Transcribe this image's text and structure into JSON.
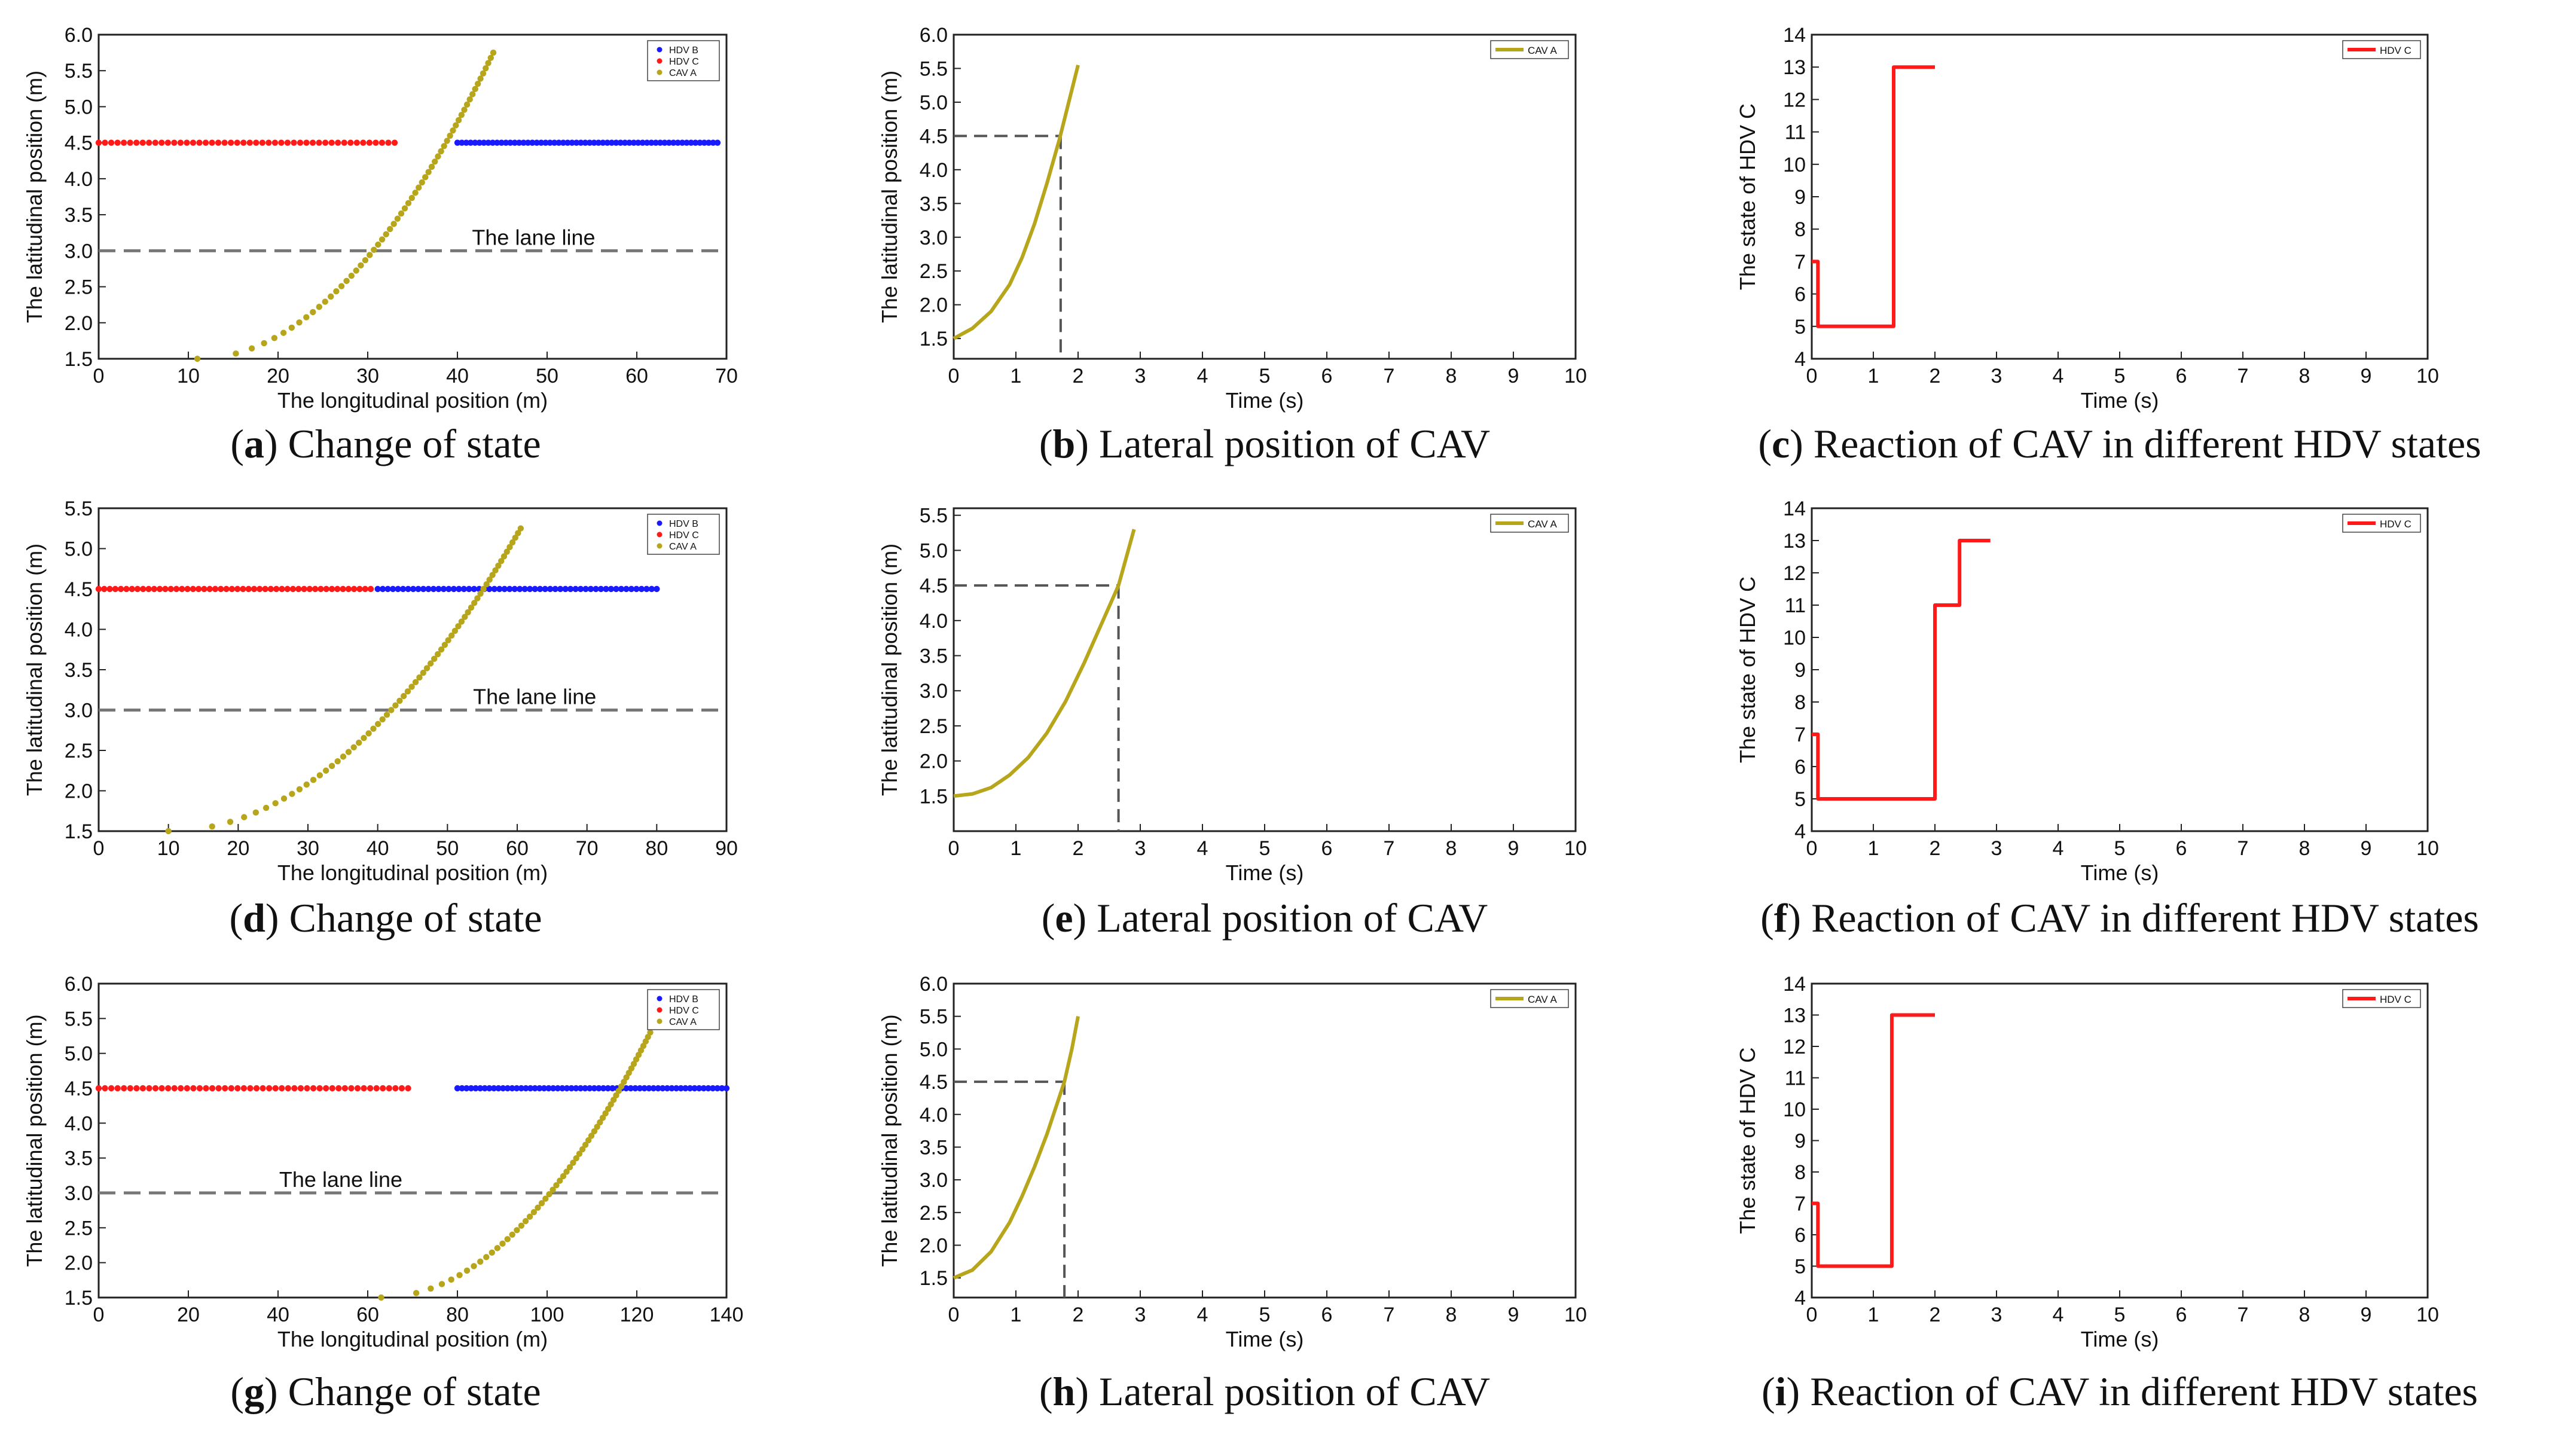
{
  "figure": {
    "description_free": true
  },
  "chart_data": [
    {
      "id": "a",
      "type": "scatter",
      "caption_letter": "a",
      "caption_text": " Change of state",
      "xlabel": "The longitudinal position (m)",
      "ylabel": "The latitudinal position (m)",
      "xlim": [
        0,
        70
      ],
      "ylim": [
        1.5,
        6.0
      ],
      "xticks": [
        0,
        10,
        20,
        30,
        40,
        50,
        60,
        70
      ],
      "yticks": [
        1.5,
        2.0,
        2.5,
        3.0,
        3.5,
        4.0,
        4.5,
        5.0,
        5.5,
        6.0
      ],
      "lane_line": {
        "y": 3.0,
        "label": "The lane line",
        "label_x": 48.5
      },
      "legend": [
        "HDV B",
        "HDV C",
        "CAV A"
      ],
      "series": [
        {
          "name": "HDV B",
          "color": "#1a1aff",
          "y": 4.5,
          "x_start": 40,
          "x_end": 69,
          "count": 60
        },
        {
          "name": "HDV C",
          "color": "#ff1a1a",
          "y": 4.5,
          "x_start": 0,
          "x_end": 33,
          "count": 48
        },
        {
          "name": "CAV A",
          "color": "#b7a51b",
          "x_start": 11,
          "x_end": 44,
          "y_start": 1.5,
          "y_end": 5.75,
          "count": 60
        }
      ]
    },
    {
      "id": "b",
      "type": "line",
      "caption_letter": "b",
      "caption_text": " Lateral position of CAV",
      "xlabel": "Time (s)",
      "ylabel": "The latitudinal position (m)",
      "xlim": [
        0,
        10
      ],
      "ylim": [
        1.2,
        6.0
      ],
      "xticks": [
        0,
        1,
        2,
        3,
        4,
        5,
        6,
        7,
        8,
        9,
        10
      ],
      "yticks": [
        1.5,
        2.0,
        2.5,
        3.0,
        3.5,
        4.0,
        4.5,
        5.0,
        5.5,
        6.0
      ],
      "legend": [
        "CAV A"
      ],
      "crossing": {
        "x": 1.72,
        "y": 4.5
      },
      "series": [
        {
          "name": "CAV A",
          "color": "#b7a51b",
          "x": [
            0,
            0.3,
            0.6,
            0.9,
            1.1,
            1.3,
            1.5,
            1.7,
            1.85,
            2.0
          ],
          "y": [
            1.5,
            1.65,
            1.9,
            2.3,
            2.7,
            3.2,
            3.8,
            4.45,
            5.0,
            5.55
          ]
        }
      ]
    },
    {
      "id": "c",
      "type": "line",
      "caption_letter": "c",
      "caption_text": " Reaction of CAV in different HDV states",
      "xlabel": "Time (s)",
      "ylabel": "The state of HDV C",
      "xlim": [
        0,
        10
      ],
      "ylim": [
        4,
        14
      ],
      "xticks": [
        0,
        1,
        2,
        3,
        4,
        5,
        6,
        7,
        8,
        9,
        10
      ],
      "yticks": [
        4,
        5,
        6,
        7,
        8,
        9,
        10,
        11,
        12,
        13,
        14
      ],
      "legend": [
        "HDV C"
      ],
      "series": [
        {
          "name": "HDV C",
          "color": "#ff1a1a",
          "x": [
            0,
            0.1,
            0.1,
            1.33,
            1.33,
            2.0
          ],
          "y": [
            7,
            7,
            5,
            5,
            13,
            13
          ]
        }
      ]
    },
    {
      "id": "d",
      "type": "scatter",
      "caption_letter": "d",
      "caption_text": " Change of state",
      "xlabel": "The longitudinal position (m)",
      "ylabel": "The latitudinal position (m)",
      "xlim": [
        0,
        90
      ],
      "ylim": [
        1.5,
        5.5
      ],
      "xticks": [
        0,
        10,
        20,
        30,
        40,
        50,
        60,
        70,
        80,
        90
      ],
      "yticks": [
        1.5,
        2.0,
        2.5,
        3.0,
        3.5,
        4.0,
        4.5,
        5.0,
        5.5
      ],
      "lane_line": {
        "y": 3.0,
        "label": "The lane line",
        "label_x": 62.5
      },
      "legend": [
        "HDV B",
        "HDV C",
        "CAV A"
      ],
      "series": [
        {
          "name": "HDV B",
          "color": "#1a1aff",
          "y": 4.5,
          "x_start": 40,
          "x_end": 80,
          "count": 56
        },
        {
          "name": "HDV C",
          "color": "#ff1a1a",
          "y": 4.5,
          "x_start": 0,
          "x_end": 39,
          "count": 50
        },
        {
          "name": "CAV A",
          "color": "#b7a51b",
          "x_start": 10,
          "x_end": 60.5,
          "y_start": 1.5,
          "y_end": 5.25,
          "count": 66
        }
      ]
    },
    {
      "id": "e",
      "type": "line",
      "caption_letter": "e",
      "caption_text": " Lateral position of CAV",
      "xlabel": "Time (s)",
      "ylabel": "The latitudinal position (m)",
      "xlim": [
        0,
        10
      ],
      "ylim": [
        1.0,
        5.6
      ],
      "xticks": [
        0,
        1,
        2,
        3,
        4,
        5,
        6,
        7,
        8,
        9,
        10
      ],
      "yticks": [
        1.5,
        2.0,
        2.5,
        3.0,
        3.5,
        4.0,
        4.5,
        5.0,
        5.5
      ],
      "legend": [
        "CAV A"
      ],
      "crossing": {
        "x": 2.65,
        "y": 4.5
      },
      "series": [
        {
          "name": "CAV A",
          "color": "#b7a51b",
          "x": [
            0,
            0.3,
            0.6,
            0.9,
            1.2,
            1.5,
            1.8,
            2.1,
            2.4,
            2.65,
            2.9
          ],
          "y": [
            1.5,
            1.53,
            1.62,
            1.8,
            2.05,
            2.4,
            2.85,
            3.4,
            4.0,
            4.5,
            5.3
          ]
        }
      ]
    },
    {
      "id": "f",
      "type": "line",
      "caption_letter": "f",
      "caption_text": " Reaction of CAV in different HDV states",
      "xlabel": "Time (s)",
      "ylabel": "The state of HDV C",
      "xlim": [
        0,
        10
      ],
      "ylim": [
        4,
        14
      ],
      "xticks": [
        0,
        1,
        2,
        3,
        4,
        5,
        6,
        7,
        8,
        9,
        10
      ],
      "yticks": [
        4,
        5,
        6,
        7,
        8,
        9,
        10,
        11,
        12,
        13,
        14
      ],
      "legend": [
        "HDV C"
      ],
      "series": [
        {
          "name": "HDV C",
          "color": "#ff1a1a",
          "x": [
            0,
            0.1,
            0.1,
            2.0,
            2.0,
            2.4,
            2.4,
            2.9
          ],
          "y": [
            7,
            7,
            5,
            5,
            11,
            11,
            13,
            13
          ]
        }
      ]
    },
    {
      "id": "g",
      "type": "scatter",
      "caption_letter": "g",
      "caption_text": " Change of state",
      "xlabel": "The longitudinal position (m)",
      "ylabel": "The latitudinal position (m)",
      "xlim": [
        0,
        140
      ],
      "ylim": [
        1.5,
        6.0
      ],
      "xticks": [
        0,
        20,
        40,
        60,
        80,
        100,
        120,
        140
      ],
      "yticks": [
        1.5,
        2.0,
        2.5,
        3.0,
        3.5,
        4.0,
        4.5,
        5.0,
        5.5,
        6.0
      ],
      "lane_line": {
        "y": 3.0,
        "label": "The lane line",
        "label_x": 54
      },
      "legend": [
        "HDV B",
        "HDV C",
        "CAV A"
      ],
      "series": [
        {
          "name": "HDV B",
          "color": "#1a1aff",
          "y": 4.5,
          "x_start": 80,
          "x_end": 140,
          "count": 60
        },
        {
          "name": "HDV C",
          "color": "#ff1a1a",
          "y": 4.5,
          "x_start": 0,
          "x_end": 69,
          "count": 50
        },
        {
          "name": "CAV A",
          "color": "#b7a51b",
          "x_start": 63,
          "x_end": 123,
          "y_start": 1.5,
          "y_end": 5.3,
          "count": 60
        }
      ]
    },
    {
      "id": "h",
      "type": "line",
      "caption_letter": "h",
      "caption_text": " Lateral position of CAV",
      "xlabel": "Time (s)",
      "ylabel": "The latitudinal position (m)",
      "xlim": [
        0,
        10
      ],
      "ylim": [
        1.2,
        6.0
      ],
      "xticks": [
        0,
        1,
        2,
        3,
        4,
        5,
        6,
        7,
        8,
        9,
        10
      ],
      "yticks": [
        1.5,
        2.0,
        2.5,
        3.0,
        3.5,
        4.0,
        4.5,
        5.0,
        5.5,
        6.0
      ],
      "legend": [
        "CAV A"
      ],
      "crossing": {
        "x": 1.78,
        "y": 4.5
      },
      "series": [
        {
          "name": "CAV A",
          "color": "#b7a51b",
          "x": [
            0,
            0.3,
            0.6,
            0.9,
            1.1,
            1.3,
            1.5,
            1.78,
            1.9,
            2.0
          ],
          "y": [
            1.5,
            1.62,
            1.9,
            2.35,
            2.75,
            3.2,
            3.7,
            4.5,
            5.0,
            5.5
          ]
        }
      ]
    },
    {
      "id": "i",
      "type": "line",
      "caption_letter": "i",
      "caption_text": " Reaction of CAV in different HDV states",
      "xlabel": "Time (s)",
      "ylabel": "The state of HDV C",
      "xlim": [
        0,
        10
      ],
      "ylim": [
        4,
        14
      ],
      "xticks": [
        0,
        1,
        2,
        3,
        4,
        5,
        6,
        7,
        8,
        9,
        10
      ],
      "yticks": [
        4,
        5,
        6,
        7,
        8,
        9,
        10,
        11,
        12,
        13,
        14
      ],
      "legend": [
        "HDV C"
      ],
      "series": [
        {
          "name": "HDV C",
          "color": "#ff1a1a",
          "x": [
            0,
            0.1,
            0.1,
            1.3,
            1.3,
            2.0
          ],
          "y": [
            7,
            7,
            5,
            5,
            13,
            13
          ]
        }
      ]
    }
  ]
}
